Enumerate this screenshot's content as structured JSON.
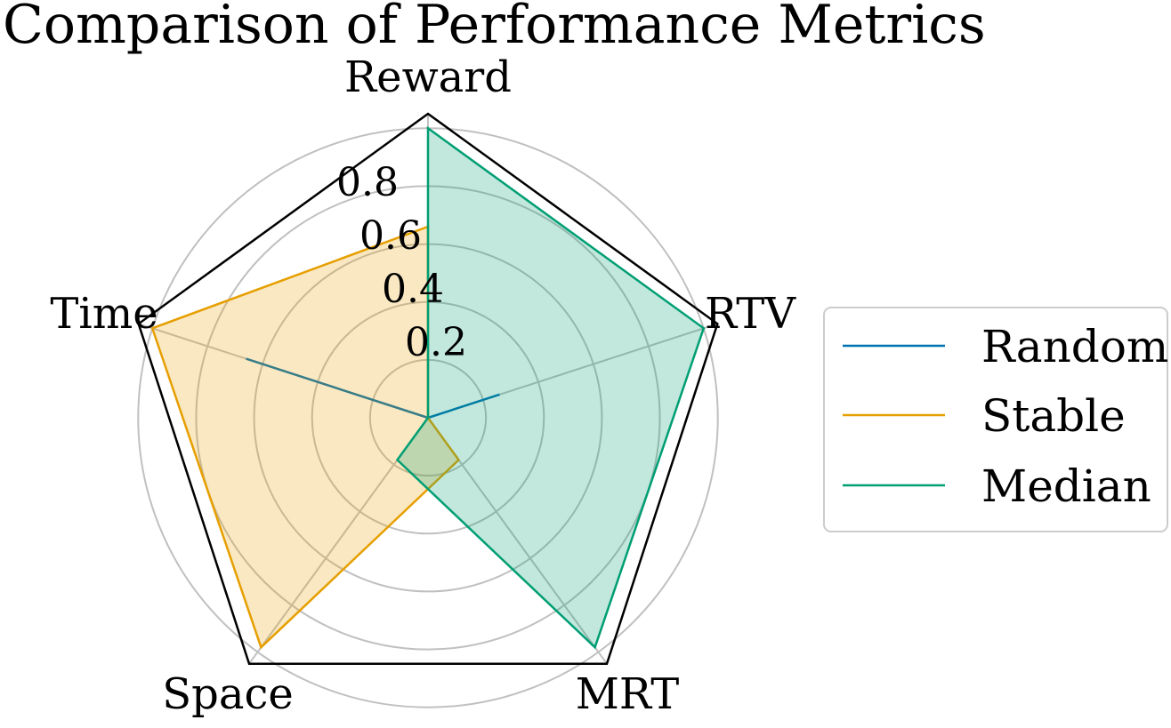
{
  "chart_data": {
    "type": "radar",
    "title": "Comparison of Performance Metrics",
    "axes": [
      "Reward",
      "RTV",
      "MRT",
      "Space",
      "Time"
    ],
    "radial_ticks": [
      "0.2",
      "0.4",
      "0.6",
      "0.8"
    ],
    "radial_tick_values": [
      0.2,
      0.4,
      0.6,
      0.8
    ],
    "rmax": 1.05,
    "grid": true,
    "legend_position": "right",
    "series": [
      {
        "name": "Random",
        "values": [
          0.0,
          0.26,
          0.0,
          0.0,
          0.66
        ],
        "color": "#0072B2",
        "filled": false
      },
      {
        "name": "Stable",
        "values": [
          0.66,
          0.0,
          0.18,
          0.98,
          1.0
        ],
        "color": "#E69F00",
        "filled": true
      },
      {
        "name": "Median",
        "values": [
          1.0,
          1.0,
          0.98,
          0.18,
          0.0
        ],
        "color": "#009E73",
        "filled": true
      }
    ]
  }
}
